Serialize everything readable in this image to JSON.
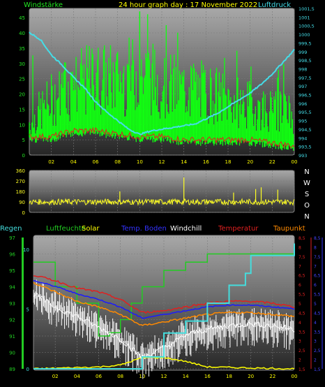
{
  "header": {
    "title": "24 hour graph day : 17 November 2022",
    "left_label": "Windstärke",
    "right_label": "Luftdruck"
  },
  "colors": {
    "wind": "#22e622",
    "gust": "#11ff11",
    "pressure": "#44dde8",
    "direction": "#ffff22",
    "humidity": "#22cc22",
    "solar": "#ffff00",
    "soil": "#1a1aff",
    "windchill": "#ffffff",
    "temperature": "#e02020",
    "dewpoint": "#ff8a00",
    "rain": "#44dddd",
    "grid": "#7a7a7a"
  },
  "legend2": {
    "regen": "Regen",
    "humidity": "Luftfeuchte",
    "solar": "Solar",
    "soil": "Temp. Boden",
    "windchill": "Windchill",
    "temperature": "Temperatur",
    "dewpoint": "Taupunkt"
  },
  "chart_data": [
    {
      "type": "line",
      "title": "24 hour graph day : 17 November 2022",
      "xlabel": "",
      "ylabel": "Windstärke",
      "x_ticks": [
        "02",
        "04",
        "06",
        "08",
        "10",
        "12",
        "14",
        "16",
        "18",
        "20",
        "22",
        "00"
      ],
      "y_left_ticks": [
        "0",
        "5",
        "10",
        "15",
        "20",
        "25",
        "30",
        "35",
        "40",
        "45"
      ],
      "ylim": [
        0,
        48
      ],
      "y_right_label": "Luftdruck",
      "y_right_ticks": [
        "993",
        "993,5",
        "994",
        "994,5",
        "995",
        "995,5",
        "996",
        "996,5",
        "997",
        "997,5",
        "998",
        "998,5",
        "999",
        "999,5",
        "1000",
        "1000,5",
        "1001",
        "1001,5"
      ],
      "y_right_lim": [
        993,
        1001.5
      ],
      "series": [
        {
          "name": "Windstärke",
          "x": [
            0,
            2,
            4,
            6,
            8,
            10,
            12,
            14,
            16,
            18,
            20,
            22,
            24
          ],
          "values": [
            12,
            20,
            25,
            28,
            27,
            30,
            26,
            24,
            23,
            20,
            18,
            16,
            15
          ]
        },
        {
          "name": "Windböen max",
          "x": [
            0,
            4,
            8,
            10,
            12,
            16,
            20,
            24
          ],
          "values": [
            32,
            33,
            35,
            47,
            34,
            30,
            28,
            26
          ]
        },
        {
          "name": "Wind low",
          "x": [
            0,
            2,
            4,
            6,
            8,
            10,
            12,
            14,
            16,
            18,
            20,
            22,
            24
          ],
          "values": [
            6,
            6,
            8,
            8,
            7,
            6,
            6,
            5,
            5,
            5,
            5,
            4,
            3
          ]
        },
        {
          "name": "Luftdruck",
          "x": [
            0,
            1,
            2,
            3,
            4,
            5,
            6,
            7,
            8,
            9,
            10,
            11,
            12,
            13,
            14,
            15,
            16,
            17,
            18,
            19,
            20,
            21,
            22,
            23,
            24
          ],
          "values": [
            1000.1,
            999.7,
            998.8,
            998.2,
            997.5,
            996.9,
            996.1,
            995.5,
            995,
            994.5,
            994.2,
            994.4,
            994.5,
            994.6,
            994.7,
            994.8,
            995.1,
            995.4,
            995.8,
            996.2,
            996.6,
            997.1,
            997.7,
            998.4,
            999.1
          ]
        }
      ]
    },
    {
      "type": "scatter",
      "title": "",
      "x_ticks": [
        "02",
        "04",
        "06",
        "08",
        "10",
        "12",
        "14",
        "16",
        "18",
        "20",
        "22",
        "00"
      ],
      "y_ticks": [
        "0",
        "90",
        "180",
        "270",
        "360"
      ],
      "ylim": [
        0,
        360
      ],
      "y_right_ticks": [
        "N",
        "W",
        "S",
        "O",
        "N"
      ],
      "series": [
        {
          "name": "Windrichtung",
          "approx_mean": 90,
          "approx_range": [
            60,
            150
          ]
        }
      ]
    },
    {
      "type": "line",
      "title": "",
      "x_ticks": [
        "02",
        "04",
        "06",
        "08",
        "10",
        "12",
        "14",
        "16",
        "18",
        "20",
        "22",
        "00"
      ],
      "y_rain_label": "Regen",
      "y_rain_ticks": [
        "0",
        "5",
        "10"
      ],
      "y_rain_lim": [
        0,
        11
      ],
      "y_humidity_ticks": [
        "89",
        "90",
        "91",
        "92",
        "93",
        "94",
        "95",
        "96",
        "97"
      ],
      "y_humidity_lim": [
        89,
        97
      ],
      "y_temp_ticks": [
        "1,5",
        "2",
        "2,5",
        "3",
        "3,5",
        "4",
        "4,5",
        "5",
        "5,5",
        "6",
        "6,5",
        "7",
        "7,5",
        "8",
        "8,5"
      ],
      "y_temp_lim": [
        1.5,
        8.5
      ],
      "y_far_right_ticks": [
        "1,5",
        "2",
        "2,5",
        "3",
        "3,5",
        "4",
        "4,5",
        "5",
        "5,5",
        "6",
        "6,5",
        "7",
        "7,5",
        "8",
        "8,5"
      ],
      "series": [
        {
          "name": "Regen",
          "x": [
            0,
            8,
            10,
            12,
            14,
            16,
            18,
            19.5,
            20,
            24
          ],
          "values": [
            0,
            0,
            1,
            3,
            4,
            5.5,
            7,
            8,
            9.5,
            10.5
          ]
        },
        {
          "name": "Luftfeuchte",
          "x": [
            0,
            1.5,
            2,
            4,
            6,
            7,
            8,
            9,
            10,
            12,
            14,
            16,
            20,
            24
          ],
          "values": [
            95.5,
            95.5,
            94,
            93,
            91,
            91.2,
            92,
            93,
            94,
            95,
            95.5,
            96,
            96,
            96.5
          ]
        },
        {
          "name": "Solar",
          "x": [
            0,
            6,
            8,
            10,
            12,
            14,
            16,
            24
          ],
          "values": [
            0,
            0.1,
            0.2,
            0.6,
            0.6,
            0.4,
            0.1,
            0
          ]
        },
        {
          "name": "Temp. Boden",
          "x": [
            0,
            2,
            4,
            6,
            8,
            10,
            12,
            14,
            16,
            18,
            20,
            22,
            24
          ],
          "values": [
            6.2,
            5.9,
            5.5,
            5.2,
            4.8,
            4.2,
            4.4,
            4.6,
            4.8,
            4.9,
            4.9,
            4.8,
            4.7
          ]
        },
        {
          "name": "Windchill",
          "x": [
            0,
            2,
            4,
            6,
            8,
            10,
            12,
            14,
            16,
            18,
            20,
            22,
            24
          ],
          "values": [
            5.5,
            4.8,
            4.3,
            3.7,
            3.1,
            2.1,
            2.6,
            3.3,
            3.6,
            3.8,
            3.9,
            3.8,
            3.6
          ]
        },
        {
          "name": "Temperatur",
          "x": [
            0,
            2,
            4,
            6,
            8,
            10,
            12,
            14,
            16,
            18,
            20,
            22,
            24
          ],
          "values": [
            6.5,
            6.2,
            5.8,
            5.6,
            5.2,
            4.5,
            4.6,
            4.8,
            5,
            5.1,
            5.1,
            5,
            4.8
          ]
        },
        {
          "name": "Taupunkt",
          "x": [
            0,
            2,
            4,
            6,
            8,
            10,
            12,
            14,
            16,
            18,
            20,
            22,
            24
          ],
          "values": [
            6.1,
            5.6,
            5.1,
            4.8,
            4.4,
            3.8,
            4,
            4.2,
            4.4,
            4.5,
            4.5,
            4.4,
            4.3
          ]
        }
      ]
    }
  ]
}
